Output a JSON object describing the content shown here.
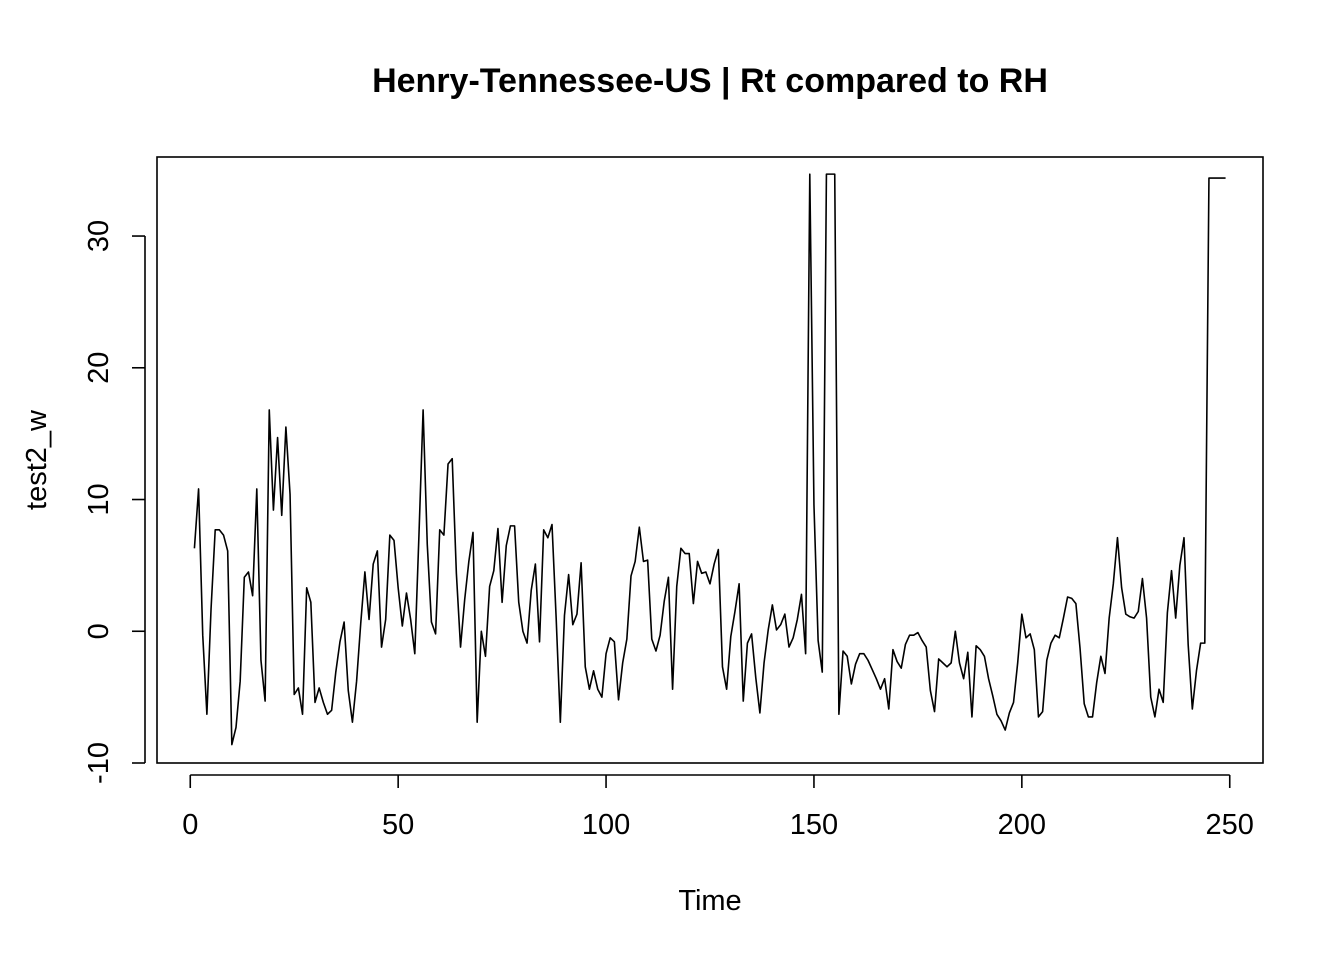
{
  "chart_data": {
    "type": "line",
    "title": "Henry-Tennessee-US | Rt compared to RH",
    "xlabel": "Time",
    "ylabel": "test2_w",
    "xlim": [
      -8,
      258
    ],
    "ylim": [
      -10,
      36
    ],
    "x_ticks": [
      "0",
      "50",
      "100",
      "150",
      "200",
      "250"
    ],
    "y_ticks": [
      "-10",
      "0",
      "10",
      "20",
      "30"
    ],
    "grid": false,
    "line_color": "#000000",
    "series": [
      {
        "x_start": 1,
        "values": [
          6.3,
          10.8,
          -0.3,
          -6.3,
          1.7,
          7.7,
          7.7,
          7.3,
          6.1,
          -8.6,
          -7.3,
          -3.8,
          4.1,
          4.5,
          2.7,
          10.8,
          -2.2,
          -5.3,
          16.8,
          9.2,
          14.7,
          8.8,
          15.5,
          10.4,
          -4.8,
          -4.3,
          -6.3,
          3.3,
          2.2,
          -5.4,
          -4.3,
          -5.4,
          -6.3,
          -6.0,
          -3.1,
          -0.8,
          0.7,
          -4.5,
          -6.9,
          -3.8,
          0.6,
          4.5,
          0.9,
          5.1,
          6.1,
          -1.2,
          0.9,
          7.3,
          6.9,
          3.3,
          0.4,
          2.9,
          0.9,
          -1.7,
          7.3,
          16.8,
          6.6,
          0.7,
          -0.2,
          7.7,
          7.3,
          12.7,
          13.1,
          4.4,
          -1.2,
          2.4,
          5.3,
          7.5,
          -6.9,
          0.0,
          -1.9,
          3.4,
          4.6,
          7.8,
          2.2,
          6.5,
          8.0,
          8.0,
          2.2,
          0.0,
          -0.9,
          3.1,
          5.1,
          -0.8,
          7.7,
          7.1,
          8.1,
          1.0,
          -6.9,
          1.2,
          4.3,
          0.5,
          1.3,
          5.2,
          -2.7,
          -4.4,
          -3.0,
          -4.4,
          -5.0,
          -1.7,
          -0.5,
          -0.8,
          -5.2,
          -2.4,
          -0.6,
          4.2,
          5.3,
          7.9,
          5.3,
          5.4,
          -0.6,
          -1.5,
          -0.3,
          2.3,
          4.1,
          -4.4,
          3.4,
          6.3,
          5.9,
          5.9,
          2.1,
          5.3,
          4.4,
          4.5,
          3.6,
          5.1,
          6.2,
          -2.7,
          -4.4,
          -0.4,
          1.5,
          3.6,
          -5.3,
          -0.9,
          -0.2,
          -3.5,
          -6.2,
          -2.4,
          0.1,
          2.0,
          0.1,
          0.5,
          1.3,
          -1.2,
          -0.5,
          0.9,
          2.8,
          -1.7,
          34.7,
          9.6,
          -0.7,
          -3.1,
          34.7,
          34.7,
          34.7,
          -6.3,
          -1.5,
          -1.9,
          -4.0,
          -2.5,
          -1.7,
          -1.7,
          -2.2,
          -2.9,
          -3.6,
          -4.4,
          -3.6,
          -5.9,
          -1.4,
          -2.3,
          -2.8,
          -1.0,
          -0.3,
          -0.3,
          -0.1,
          -0.7,
          -1.2,
          -4.5,
          -6.1,
          -2.1,
          -2.4,
          -2.7,
          -2.4,
          0.0,
          -2.4,
          -3.6,
          -1.6,
          -6.5,
          -1.1,
          -1.4,
          -1.9,
          -3.6,
          -4.9,
          -6.3,
          -6.8,
          -7.5,
          -6.2,
          -5.4,
          -2.4,
          1.3,
          -0.5,
          -0.2,
          -1.4,
          -6.5,
          -6.1,
          -2.2,
          -0.9,
          -0.3,
          -0.5,
          1.0,
          2.6,
          2.5,
          2.1,
          -1.3,
          -5.5,
          -6.5,
          -6.5,
          -3.9,
          -1.9,
          -3.2,
          1.0,
          3.6,
          7.1,
          3.3,
          1.3,
          1.1,
          1.0,
          1.5,
          4.0,
          1.0,
          -5.0,
          -6.5,
          -4.4,
          -5.4,
          1.4,
          4.6,
          1.0,
          5.0,
          7.1,
          -1.0,
          -5.9,
          -3.0,
          -0.9,
          -0.9,
          34.4,
          34.4,
          34.4,
          34.4,
          34.4
        ]
      }
    ]
  }
}
